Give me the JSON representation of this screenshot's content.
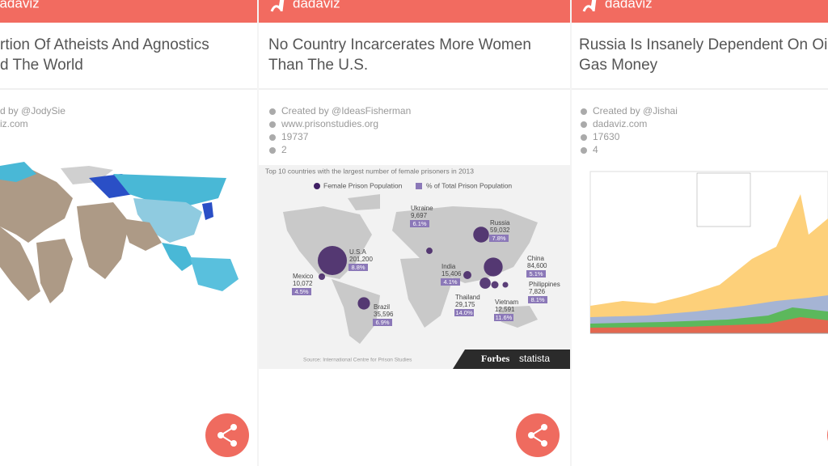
{
  "screens": [
    {
      "app": "dadaviz",
      "title_lines": [
        "rtion Of Atheists And Agnostics",
        "d The World"
      ],
      "meta": [
        "d by @JodySie",
        "iz.com"
      ]
    },
    {
      "app": "dadaviz",
      "title_lines": [
        "No Country Incarcerates More Women",
        "Than The U.S."
      ],
      "meta": [
        "Created by @IdeasFisherman",
        "www.prisonstudies.org",
        "19737",
        "2"
      ],
      "infographic": {
        "title": "Top 10 countries with the largest number of female prisoners in 2013",
        "legend": [
          "Female Prison Population",
          "% of Total Prison Population"
        ],
        "countries": [
          {
            "name": "Ukraine",
            "population": 9697,
            "population_label": "9,697",
            "share_label": "6.1%"
          },
          {
            "name": "Russia",
            "population": 59032,
            "population_label": "59,032",
            "share_label": "7.8%"
          },
          {
            "name": "U.S.A",
            "population": 201200,
            "population_label": "201,200",
            "share_label": "8.8%"
          },
          {
            "name": "China",
            "population": 84600,
            "population_label": "84,600",
            "share_label": "5.1%"
          },
          {
            "name": "Mexico",
            "population": 10072,
            "population_label": "10,072",
            "share_label": "4.5%"
          },
          {
            "name": "India",
            "population": 15406,
            "population_label": "15,406",
            "share_label": "4.1%"
          },
          {
            "name": "Philippines",
            "population": 7826,
            "population_label": "7,826",
            "share_label": "8.1%"
          },
          {
            "name": "Thailand",
            "population": 29175,
            "population_label": "29,175",
            "share_label": "14.0%"
          },
          {
            "name": "Vietnam",
            "population": 12591,
            "population_label": "12,591",
            "share_label": "11.6%"
          },
          {
            "name": "Brazil",
            "population": 35596,
            "population_label": "35,596",
            "share_label": "6.9%"
          }
        ],
        "source": "Source: International Centre for Prison Studies",
        "brands": [
          "Forbes",
          "statista"
        ]
      }
    },
    {
      "app": "dadaviz",
      "title_lines": [
        "Russia Is Insanely Dependent On Oil",
        "Gas Money"
      ],
      "meta": [
        "Created by @Jishai",
        "dadaviz.com",
        "17630",
        "4"
      ]
    }
  ]
}
